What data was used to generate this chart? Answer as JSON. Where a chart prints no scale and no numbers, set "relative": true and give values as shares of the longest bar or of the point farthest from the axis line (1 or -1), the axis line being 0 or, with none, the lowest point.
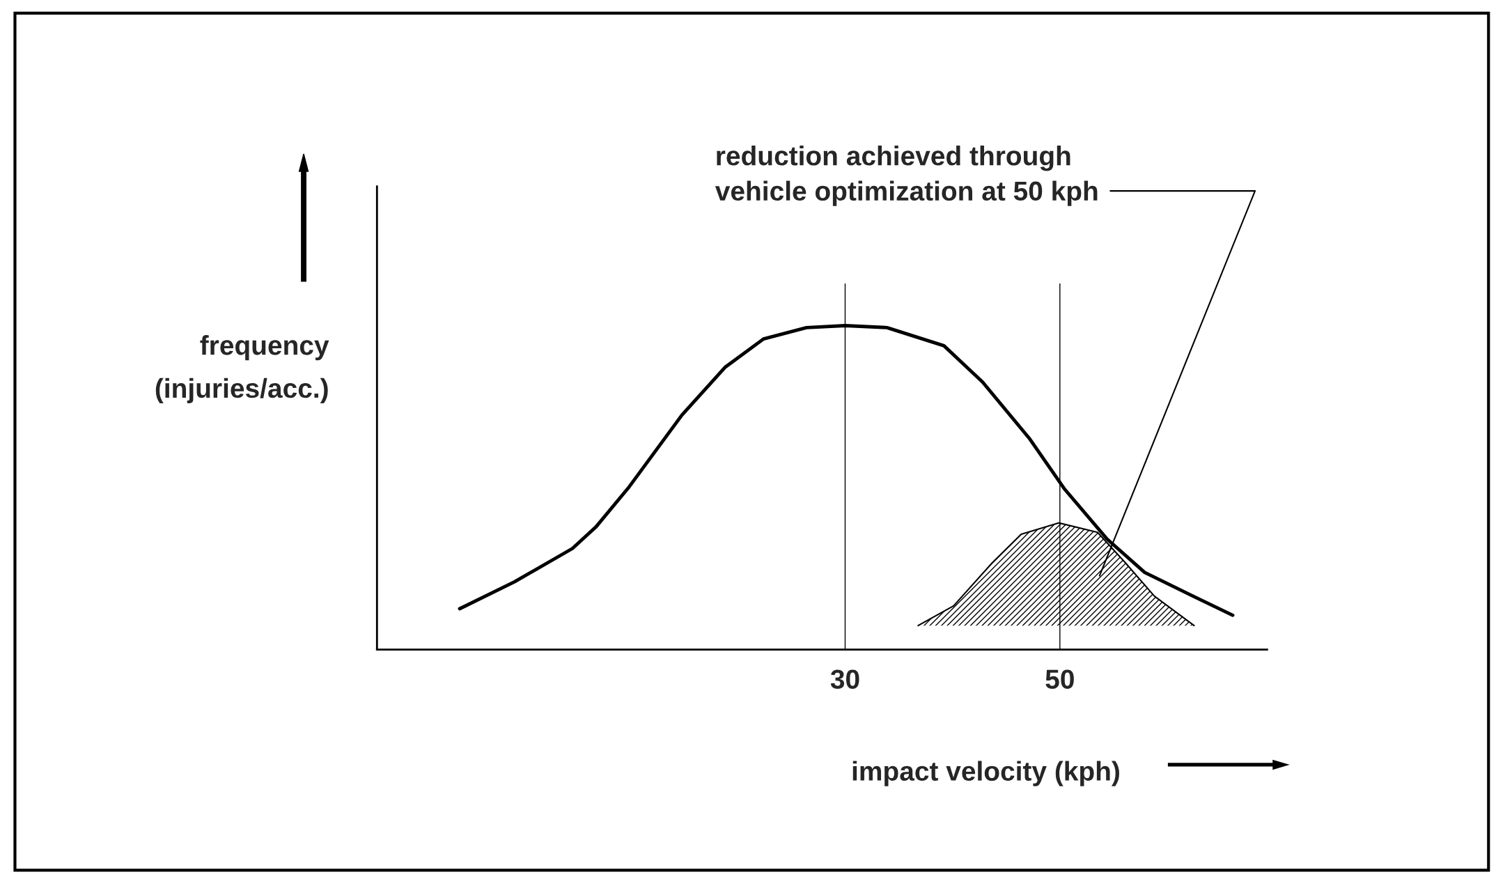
{
  "chart_data": {
    "type": "line",
    "relative": true,
    "xlabel": "impact velocity (kph)",
    "ylabel": "frequency\n(injuries/acc.)",
    "xlim": [
      -13.6,
      69.3
    ],
    "xticks": [
      30,
      50
    ],
    "tick_labels": "x",
    "grid": false,
    "series": [
      {
        "color": "#000000",
        "x": [
          -5.9,
          -0.8,
          4.6,
          6.8,
          9.9,
          14.8,
          18.8,
          22.4,
          26.4,
          30,
          33.9,
          39.2,
          42.8,
          47.2,
          50.4,
          54.4,
          57.9,
          62.4,
          66.1
        ],
        "values": [
          0.126,
          0.209,
          0.312,
          0.379,
          0.503,
          0.724,
          0.871,
          0.959,
          0.994,
          1,
          0.994,
          0.938,
          0.826,
          0.65,
          0.497,
          0.341,
          0.238,
          0.165,
          0.106
        ]
      },
      {
        "type": "area",
        "color": "#000000",
        "x": [
          36.8,
          40.1,
          43.7,
          46.4,
          49.9,
          53.5,
          56.1,
          58.8,
          62.5
        ],
        "values": [
          0.074,
          0.135,
          0.268,
          0.356,
          0.391,
          0.362,
          0.268,
          0.165,
          0.074
        ]
      }
    ],
    "ref_lines": [
      {
        "axis": "x",
        "value": 30,
        "color": "#000000"
      },
      {
        "axis": "x",
        "value": 50,
        "color": "#000000"
      }
    ],
    "annotations": [
      "reduction achieved through\nvehicle optimization at 50 kph"
    ]
  }
}
